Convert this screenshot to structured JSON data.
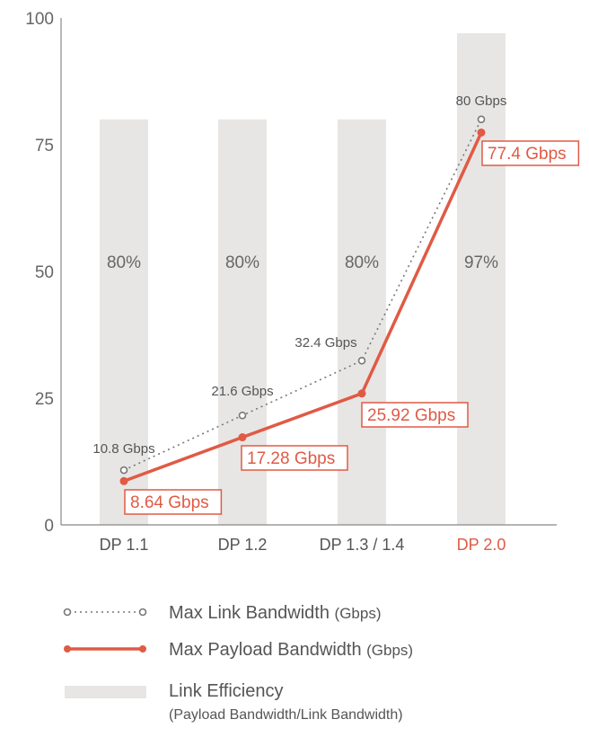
{
  "chart_data": {
    "type": "bar",
    "categories": [
      "DP 1.1",
      "DP 1.2",
      "DP 1.3 / 1.4",
      "DP 2.0"
    ],
    "highlight_category": "DP 2.0",
    "ylim": [
      0,
      100
    ],
    "yticks": [
      0,
      25,
      50,
      75,
      100
    ],
    "ytick_labels": [
      "0",
      "25",
      "50",
      "75",
      "100"
    ],
    "grid": false,
    "legend_placement": "bottom",
    "series": [
      {
        "name": "Link Efficiency",
        "kind": "bar",
        "values": [
          80,
          80,
          80,
          97
        ],
        "labels": [
          "80%",
          "80%",
          "80%",
          "97%"
        ],
        "color": "#e8e6e4"
      },
      {
        "name": "Max Link Bandwidth",
        "kind": "line",
        "style": "dotted",
        "values": [
          10.8,
          21.6,
          32.4,
          80
        ],
        "labels": [
          "10.8 Gbps",
          "21.6 Gbps",
          "32.4 Gbps",
          "80 Gbps"
        ],
        "color": "#777777"
      },
      {
        "name": "Max Payload Bandwidth",
        "kind": "line",
        "style": "solid",
        "values": [
          8.64,
          17.28,
          25.92,
          77.4
        ],
        "labels": [
          "8.64 Gbps",
          "17.28 Gbps",
          "25.92 Gbps",
          "77.4 Gbps"
        ],
        "color": "#e05a45"
      }
    ]
  },
  "legend": {
    "link": {
      "label": "Max Link Bandwidth",
      "unit": "(Gbps)"
    },
    "payload": {
      "label": "Max Payload Bandwidth",
      "unit": "(Gbps)"
    },
    "efficiency": {
      "label": "Link Efficiency",
      "sublabel": "(Payload Bandwidth/Link Bandwidth)"
    }
  },
  "colors": {
    "axis": "#888888",
    "text": "#666666",
    "highlight": "#e05a45",
    "bar": "#e8e6e4",
    "dotted": "#777777",
    "legend_text": "#555555"
  }
}
